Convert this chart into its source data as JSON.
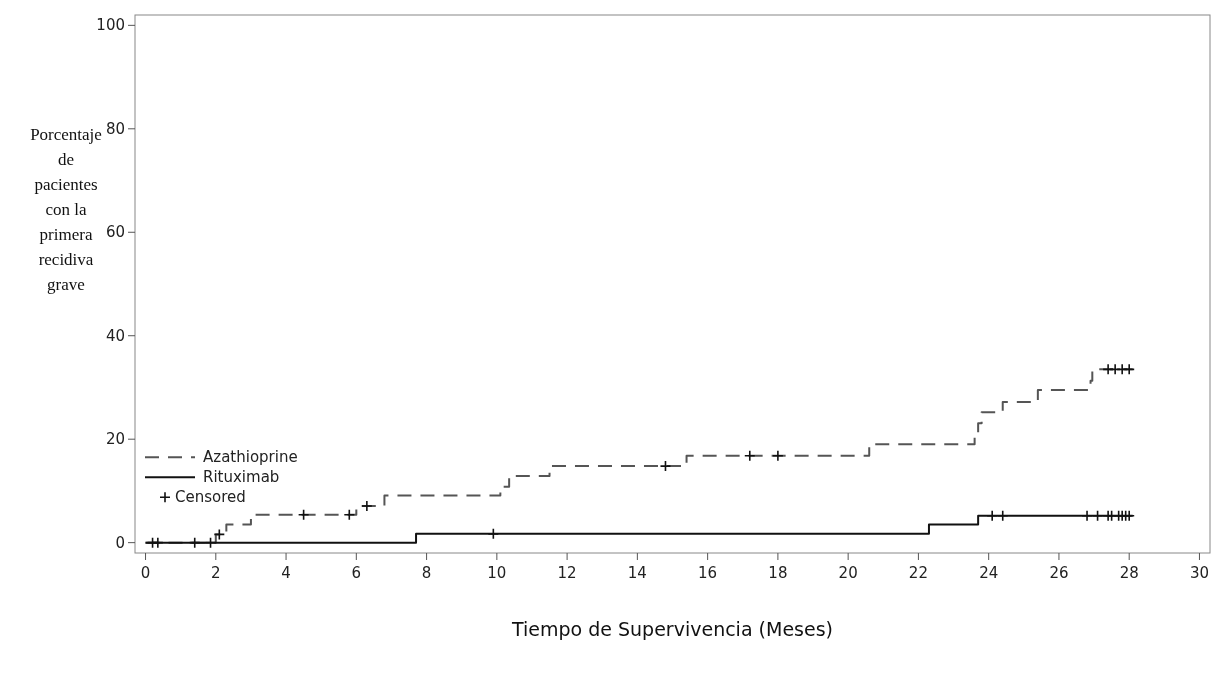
{
  "chart_data": {
    "type": "step",
    "xlabel": "Tiempo de Supervivencia (Meses)",
    "ylabel": "Porcentaje de pacientes con la primera recidiva grave",
    "xlim": [
      -0.3,
      30.3
    ],
    "ylim": [
      -2,
      102
    ],
    "xticks": [
      0,
      2,
      4,
      6,
      8,
      10,
      12,
      14,
      16,
      18,
      20,
      22,
      24,
      26,
      28,
      30
    ],
    "yticks": [
      0,
      20,
      40,
      60,
      80,
      100
    ],
    "grid": false,
    "legend": "bottom left",
    "series": [
      {
        "name": "Azathioprine",
        "color": "#555555",
        "line_style": "dashed",
        "x": [
          0,
          2.0,
          2.17,
          2.3,
          3.0,
          6.0,
          6.8,
          10.1,
          10.35,
          11.5,
          15.4,
          20.6,
          23.6,
          23.7,
          23.8,
          24.4,
          25.4,
          26.9,
          26.95,
          28.1
        ],
        "values": [
          0,
          1.6,
          2.1,
          3.5,
          5.4,
          7.1,
          9.1,
          10.8,
          12.9,
          14.8,
          16.8,
          19,
          20.8,
          23.1,
          25.2,
          27.2,
          29.5,
          31.3,
          33.5,
          33.5
        ]
      },
      {
        "name": "Rituximab",
        "color": "#111111",
        "line_style": "solid",
        "x": [
          0,
          7.7,
          22.3,
          23.7,
          28.1
        ],
        "values": [
          0,
          1.7,
          3.5,
          5.2,
          5.2
        ]
      },
      {
        "name": "Censored",
        "type": "scatter",
        "color": "#111111",
        "marker": "cross",
        "x": [
          0.2,
          0.35,
          1.4,
          1.85,
          2.1,
          4.5,
          5.8,
          6.3,
          14.8,
          17.2,
          18.0,
          27.4,
          27.6,
          27.8,
          28.0,
          9.9,
          24.1,
          24.4,
          26.8,
          27.1,
          27.4,
          27.5,
          27.7,
          27.8,
          27.9,
          28.0
        ],
        "values": [
          0,
          0,
          0,
          0,
          1.6,
          5.4,
          5.4,
          7.1,
          14.8,
          16.8,
          16.8,
          33.5,
          33.5,
          33.5,
          33.5,
          1.7,
          5.2,
          5.2,
          5.2,
          5.2,
          5.2,
          5.2,
          5.2,
          5.2,
          5.2,
          5.2
        ]
      }
    ]
  }
}
